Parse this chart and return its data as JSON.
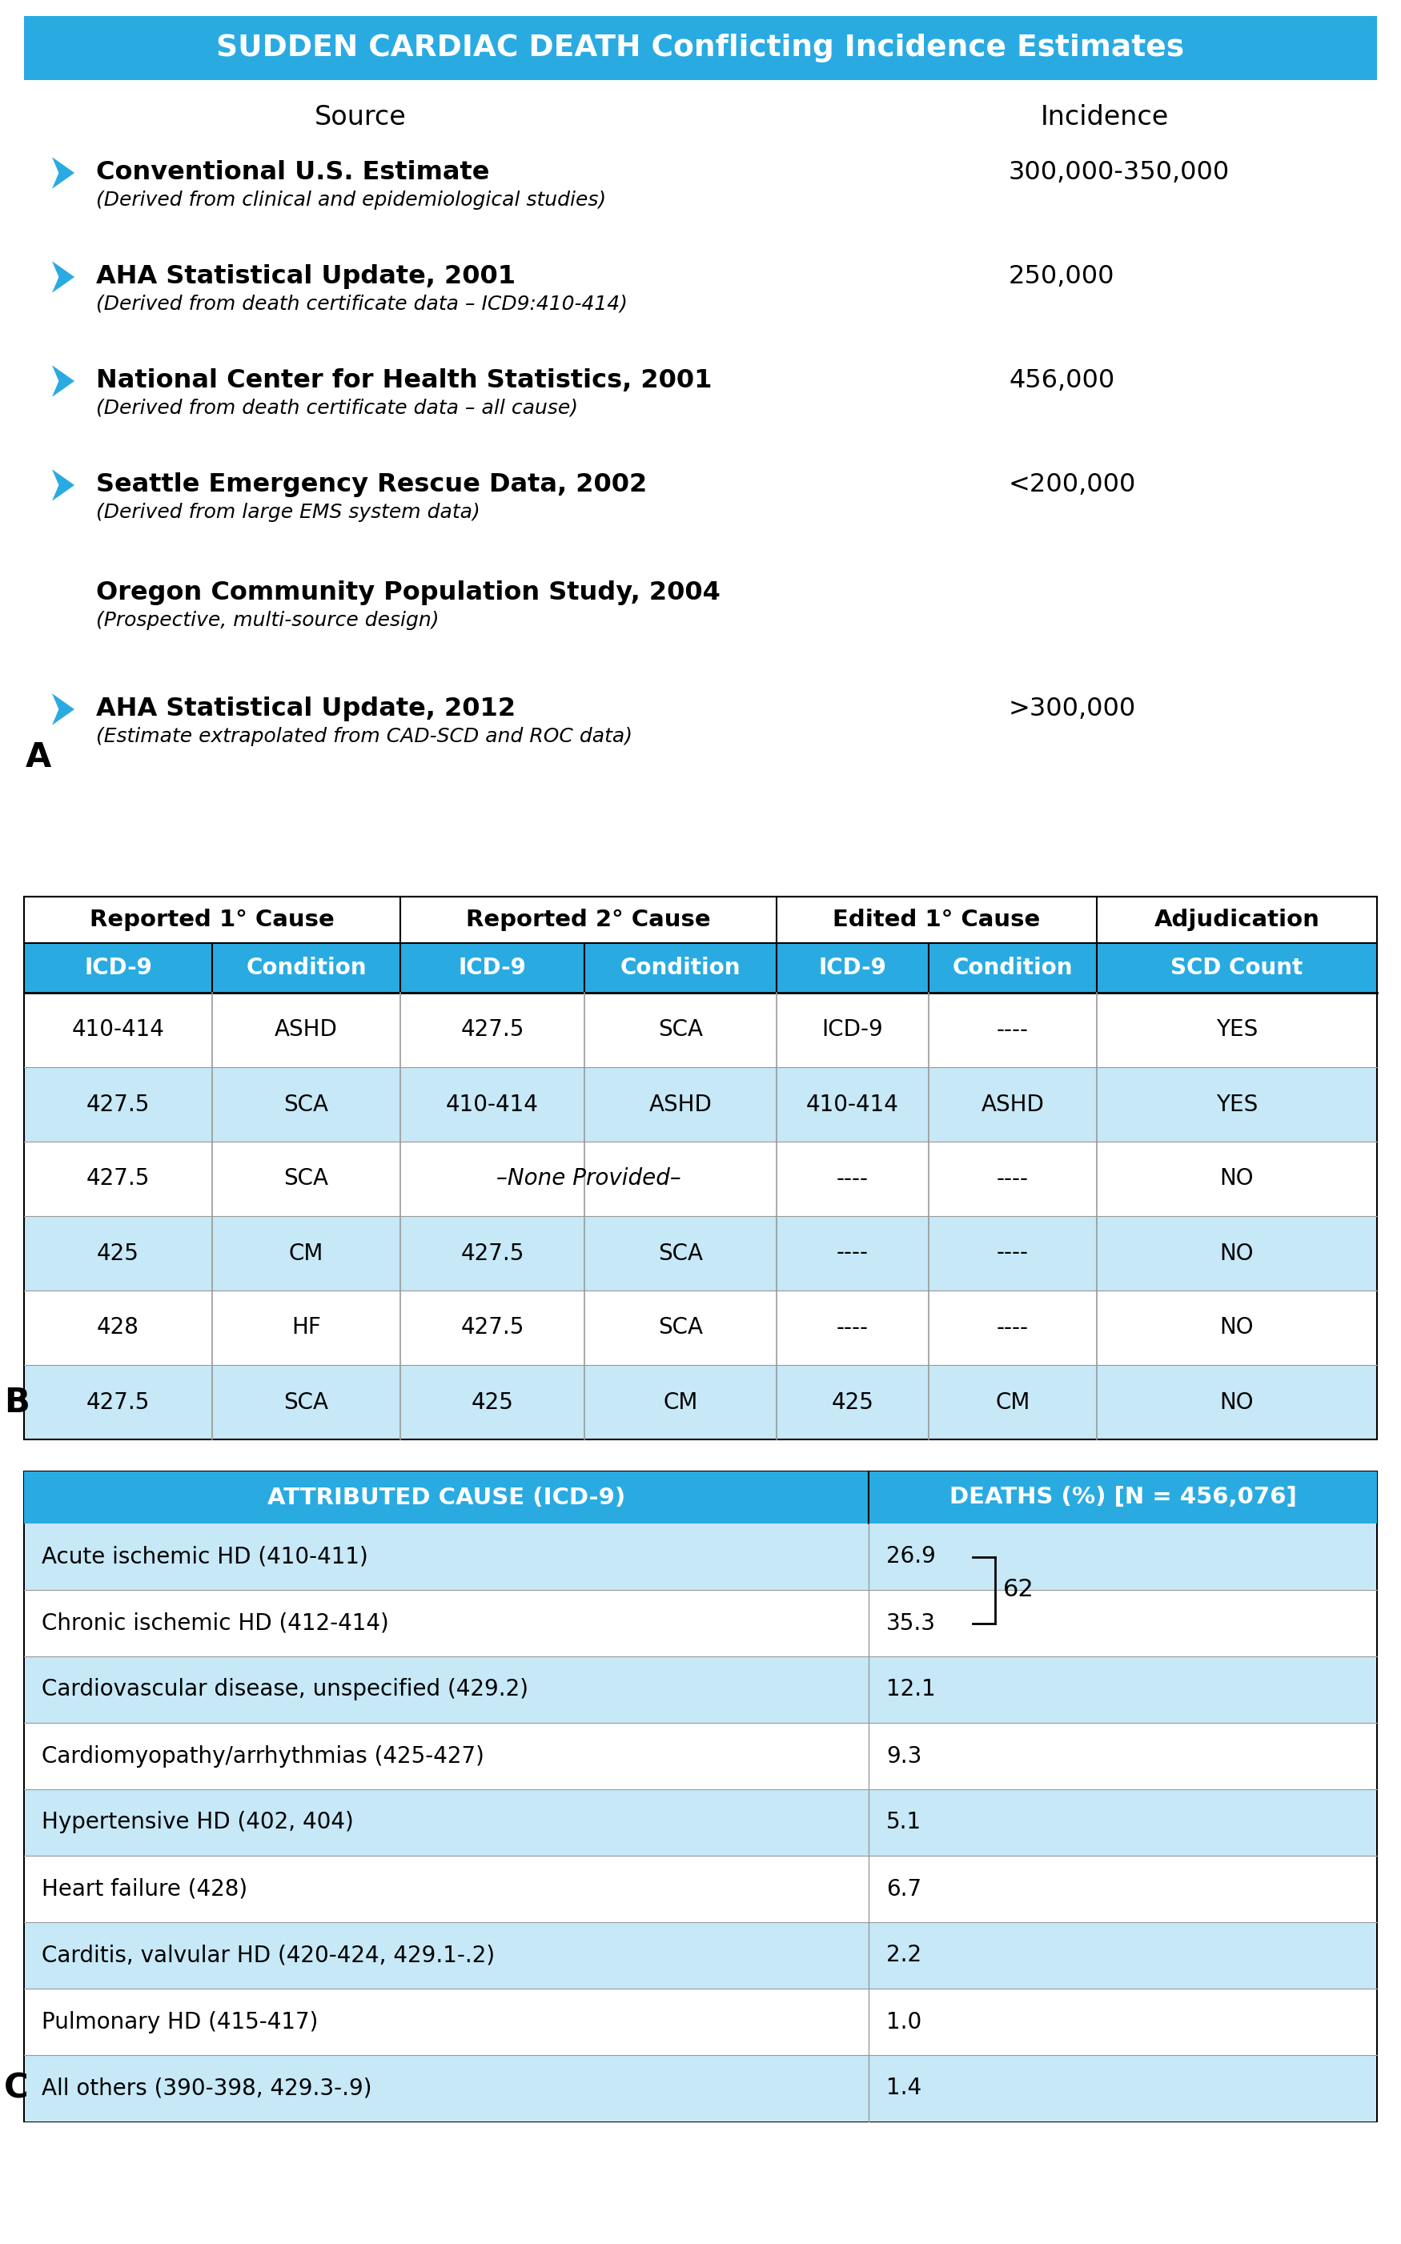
{
  "title": "SUDDEN CARDIAC DEATH Conflicting Incidence Estimates",
  "title_bg": "#29ABE2",
  "title_color": "white",
  "arrow_color": "#29ABE2",
  "section_A": {
    "col_headers": [
      "Source",
      "Incidence"
    ],
    "rows": [
      {
        "has_arrow": true,
        "source_main": "Conventional U.S. Estimate",
        "source_sub": "(Derived from clinical and epidemiological studies)",
        "incidence": "300,000-350,000"
      },
      {
        "has_arrow": true,
        "source_main": "AHA Statistical Update, 2001",
        "source_sub": "(Derived from death certificate data – ICD9:410-414)",
        "incidence": "250,000"
      },
      {
        "has_arrow": true,
        "source_main": "National Center for Health Statistics, 2001",
        "source_sub": "(Derived from death certificate data – all cause)",
        "incidence": "456,000"
      },
      {
        "has_arrow": true,
        "source_main": "Seattle Emergency Rescue Data, 2002",
        "source_sub": "(Derived from large EMS system data)",
        "incidence": "<200,000"
      },
      {
        "has_arrow": false,
        "source_main": "Oregon Community Population Study, 2004",
        "source_sub": "(Prospective, multi-source design)",
        "incidence": ""
      },
      {
        "has_arrow": true,
        "source_main": "AHA Statistical Update, 2012",
        "source_sub": "(Estimate extrapolated from CAD-SCD and ROC data)",
        "incidence": ">300,000"
      }
    ]
  },
  "section_B": {
    "group_headers": [
      "Reported 1° Cause",
      "Reported 2° Cause",
      "Edited 1° Cause",
      "Adjudication"
    ],
    "col_headers": [
      "ICD-9",
      "Condition",
      "ICD-9",
      "Condition",
      "ICD-9",
      "Condition",
      "SCD Count"
    ],
    "header_bg": "#29ABE2",
    "header_color": "white",
    "alt_row_bg": "#C6E8F7",
    "rows": [
      [
        "410-414",
        "ASHD",
        "427.5",
        "SCA",
        "ICD-9",
        "----",
        "YES"
      ],
      [
        "427.5",
        "SCA",
        "410-414",
        "ASHD",
        "410-414",
        "ASHD",
        "YES"
      ],
      [
        "427.5",
        "SCA",
        "–None Provided–",
        "",
        "----",
        "----",
        "NO"
      ],
      [
        "425",
        "CM",
        "427.5",
        "SCA",
        "----",
        "----",
        "NO"
      ],
      [
        "428",
        "HF",
        "427.5",
        "SCA",
        "----",
        "----",
        "NO"
      ],
      [
        "427.5",
        "SCA",
        "425",
        "CM",
        "425",
        "CM",
        "NO"
      ]
    ]
  },
  "section_C": {
    "header": [
      "ATTRIBUTED CAUSE (ICD-9)",
      "DEATHS (%) [N = 456,076]"
    ],
    "header_bg": "#29ABE2",
    "header_color": "white",
    "alt_row_bg": "#C6E8F7",
    "rows": [
      [
        "Acute ischemic HD (410-411)",
        "26.9"
      ],
      [
        "Chronic ischemic HD (412-414)",
        "35.3"
      ],
      [
        "Cardiovascular disease, unspecified (429.2)",
        "12.1"
      ],
      [
        "Cardiomyopathy/arrhythmias (425-427)",
        "9.3"
      ],
      [
        "Hypertensive HD (402, 404)",
        "5.1"
      ],
      [
        "Heart failure (428)",
        "6.7"
      ],
      [
        "Carditis, valvular HD (420-424, 429.1-.2)",
        "2.2"
      ],
      [
        "Pulmonary HD (415-417)",
        "1.0"
      ],
      [
        "All others (390-398, 429.3-.9)",
        "1.4"
      ]
    ],
    "brace_label": "62"
  }
}
